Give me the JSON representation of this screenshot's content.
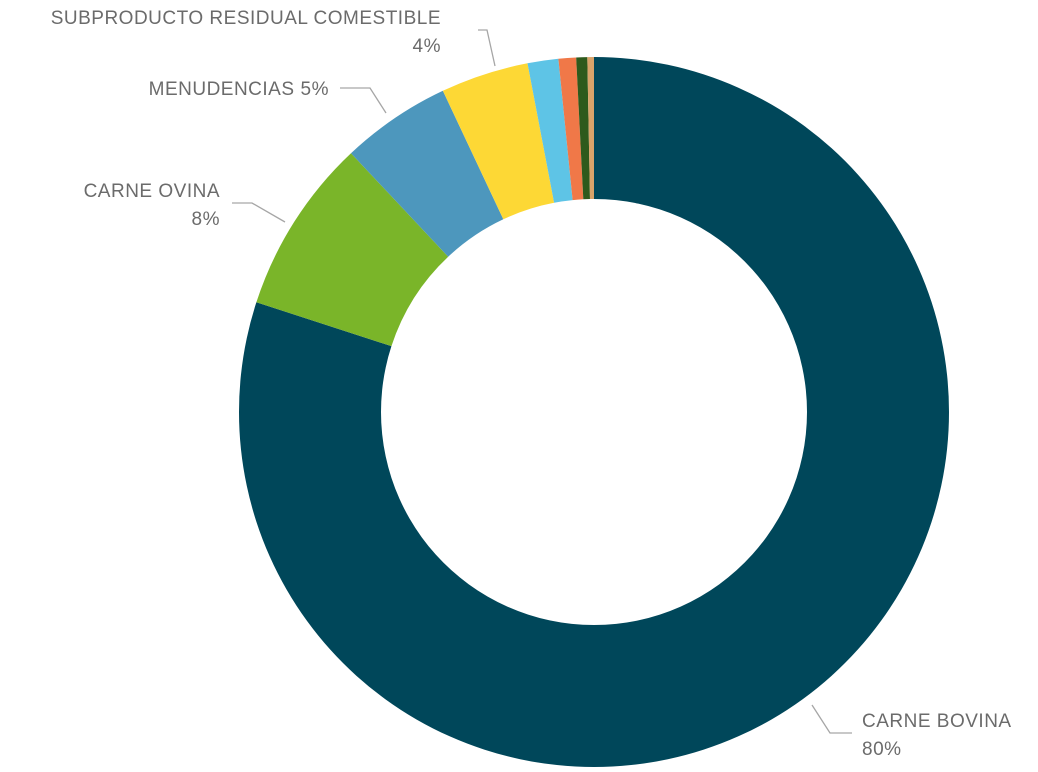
{
  "chart_data": {
    "type": "donut",
    "categories": [
      "CARNE BOVINA",
      "CARNE OVINA",
      "MENUDENCIAS",
      "SUBPRODUCTO RESIDUAL COMESTIBLE",
      null,
      null,
      null,
      null
    ],
    "values": [
      80,
      8,
      5,
      4,
      1.4,
      0.8,
      0.5,
      0.3
    ],
    "value_labels": [
      "80%",
      "8%",
      "5%",
      "4%",
      null,
      null,
      null,
      null
    ],
    "colors": [
      "#00475a",
      "#7ab529",
      "#4d97bd",
      "#fdd835",
      "#5ec4e6",
      "#f07848",
      "#2e5a1c",
      "#d9a36a"
    ]
  }
}
